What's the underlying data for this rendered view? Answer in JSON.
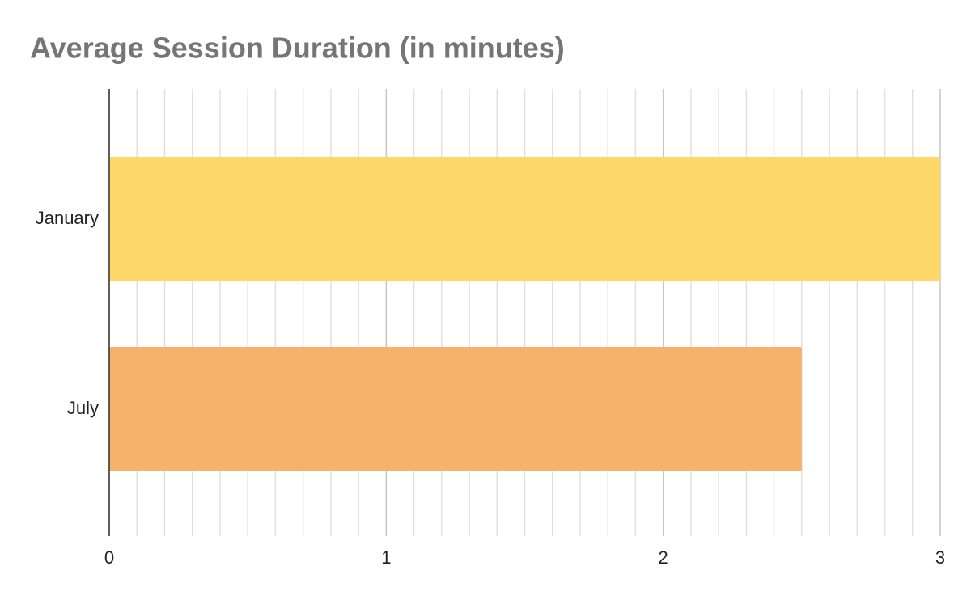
{
  "chart_data": {
    "type": "bar",
    "orientation": "horizontal",
    "title": "Average Session Duration (in minutes)",
    "categories": [
      "January",
      "July"
    ],
    "values": [
      3,
      2.5
    ],
    "colors": [
      "#fdd868",
      "#f6b26b"
    ],
    "xlim": [
      0,
      3
    ],
    "xticks": [
      0,
      1,
      2,
      3
    ],
    "grid": true,
    "minor_grid": true
  }
}
